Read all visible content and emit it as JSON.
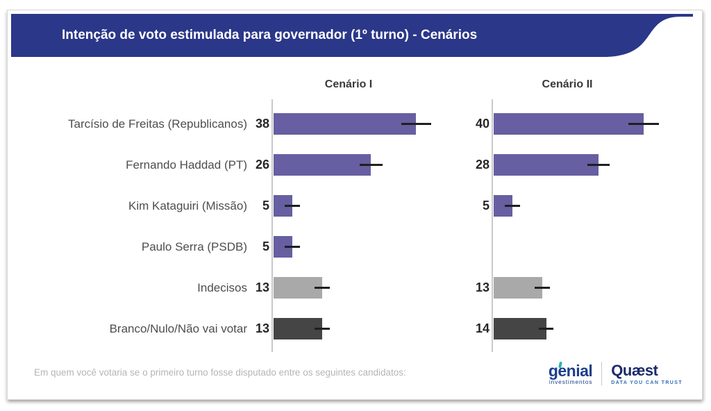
{
  "title": "Intenção de voto estimulada para governador (1º turno) - Cenários",
  "footer": {
    "question": "Em quem você votaria se o primeiro turno fosse disputado entre os seguintes candidatos:",
    "logos": {
      "genial": {
        "name": "genial",
        "sub": "investimentos"
      },
      "quaest": {
        "name": "Quæst",
        "sub": "DATA YOU CAN TRUST"
      }
    }
  },
  "chart_data": {
    "type": "bar",
    "orientation": "horizontal",
    "title": "Intenção de voto estimulada para governador (1º turno) - Cenários",
    "categories": [
      "Tarcísio de Freitas (Republicanos)",
      "Fernando Haddad (PT)",
      "Kim Kataguiri (Missão)",
      "Paulo Serra (PSDB)",
      "Indecisos",
      "Branco/Nulo/Não vai votar"
    ],
    "series": [
      {
        "name": "Cenário I",
        "values": [
          38,
          26,
          5,
          5,
          13,
          13
        ],
        "errors": [
          4,
          3,
          2,
          2,
          2,
          2
        ]
      },
      {
        "name": "Cenário II",
        "values": [
          40,
          28,
          5,
          null,
          13,
          14
        ],
        "errors": [
          4,
          3,
          2,
          null,
          2,
          2
        ]
      }
    ],
    "bar_colors": [
      "#665fa1",
      "#665fa1",
      "#665fa1",
      "#665fa1",
      "#a9a9a9",
      "#454545"
    ],
    "xlim": [
      0,
      50
    ],
    "unit": "%",
    "grid": false,
    "legend_position": "column-headers",
    "error_bars": true
  },
  "colors": {
    "banner_bg": "#2b3788",
    "bar_purple": "#665fa1",
    "bar_gray": "#a9a9a9",
    "bar_dark": "#454545",
    "axis_line": "#c9c9c9",
    "error_bar": "#1f1f1f"
  }
}
